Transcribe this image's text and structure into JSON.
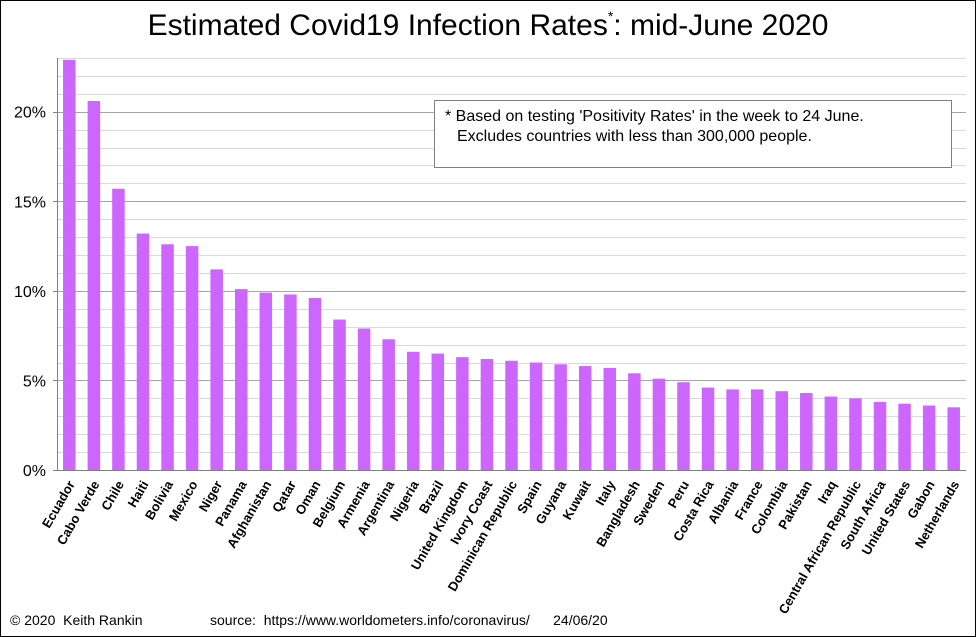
{
  "title": {
    "main": "Estimated Covid19 Infection Rates",
    "marker": "*",
    "suffix": ": mid-June 2020"
  },
  "note": {
    "line1": "* Based on testing 'Positivity Rates' in the week to 24 June.",
    "line2": "Excludes countries with less than 300,000 people."
  },
  "footer": {
    "copyright": "© 2020  Keith Rankin",
    "source": "source:  https://www.worldometers.info/coronavirus/      24/06/20"
  },
  "chart_data": {
    "type": "bar",
    "title": "Estimated Covid19 Infection Rates*: mid-June 2020",
    "xlabel": "",
    "ylabel": "",
    "ylim": [
      0,
      0.23
    ],
    "yticks": [
      0,
      0.05,
      0.1,
      0.15,
      0.2
    ],
    "ytick_labels": [
      "0%",
      "5%",
      "10%",
      "15%",
      "20%"
    ],
    "grid": true,
    "bar_color": "#cc66ff",
    "categories": [
      "Ecuador",
      "Cabo Verde",
      "Chile",
      "Haiti",
      "Bolivia",
      "Mexico",
      "Niger",
      "Panama",
      "Afghanistan",
      "Qatar",
      "Oman",
      "Belgium",
      "Armenia",
      "Argentina",
      "Nigeria",
      "Brazil",
      "United Kingdom",
      "Ivory Coast",
      "Dominican Republic",
      "Spain",
      "Guyana",
      "Kuwait",
      "Italy",
      "Bangladesh",
      "Sweden",
      "Peru",
      "Costa Rica",
      "Albania",
      "France",
      "Colombia",
      "Pakistan",
      "Iraq",
      "Central African Republic",
      "South Africa",
      "United States",
      "Gabon",
      "Netherlands"
    ],
    "values": [
      0.229,
      0.206,
      0.157,
      0.132,
      0.126,
      0.125,
      0.112,
      0.101,
      0.099,
      0.098,
      0.096,
      0.084,
      0.079,
      0.073,
      0.066,
      0.065,
      0.063,
      0.062,
      0.061,
      0.06,
      0.059,
      0.058,
      0.057,
      0.054,
      0.051,
      0.049,
      0.046,
      0.045,
      0.045,
      0.044,
      0.043,
      0.041,
      0.04,
      0.038,
      0.037,
      0.036,
      0.035
    ]
  }
}
